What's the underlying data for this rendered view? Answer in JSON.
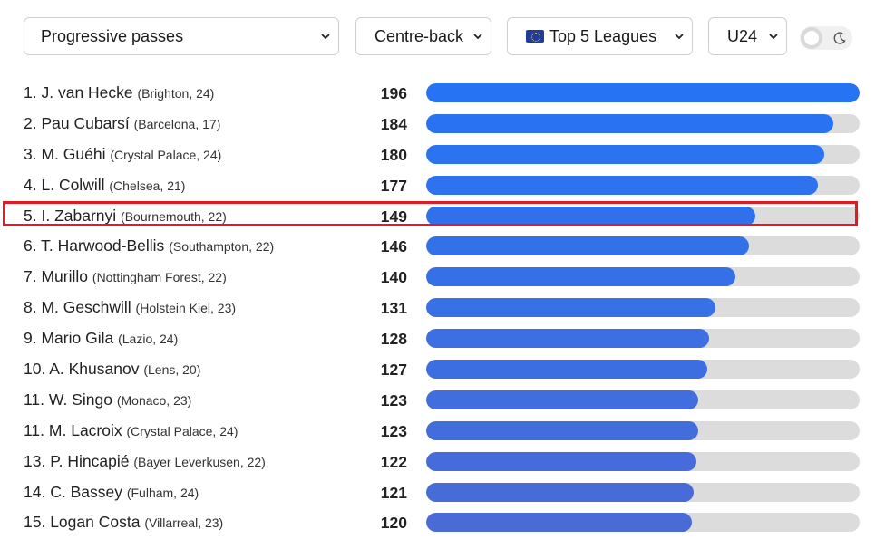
{
  "filters": {
    "stat": "Progressive passes",
    "position": "Centre-back",
    "league": "Top 5 Leagues",
    "league_icon": "eu-flag-icon",
    "age": "U24"
  },
  "theme_toggle": {
    "light_icon": "sun-circle-icon",
    "dark_icon": "moon-icon"
  },
  "colors": {
    "bar_start": "#2674f4",
    "bar_end": "#4a6bd6",
    "track": "#dcdcdc",
    "highlight": "#e01b24"
  },
  "highlighted_rank": "5.",
  "chart_data": {
    "type": "bar",
    "max": 196,
    "rows": [
      {
        "rank": "1.",
        "name": "J. van Hecke",
        "meta": "(Brighton, 24)",
        "value": 196
      },
      {
        "rank": "2.",
        "name": "Pau Cubarsí",
        "meta": "(Barcelona, 17)",
        "value": 184
      },
      {
        "rank": "3.",
        "name": "M. Guéhi",
        "meta": "(Crystal Palace, 24)",
        "value": 180
      },
      {
        "rank": "4.",
        "name": "L. Colwill",
        "meta": "(Chelsea, 21)",
        "value": 177
      },
      {
        "rank": "5.",
        "name": "I. Zabarnyi",
        "meta": "(Bournemouth, 22)",
        "value": 149
      },
      {
        "rank": "6.",
        "name": "T. Harwood-Bellis",
        "meta": "(Southampton, 22)",
        "value": 146
      },
      {
        "rank": "7.",
        "name": "Murillo",
        "meta": "(Nottingham Forest, 22)",
        "value": 140
      },
      {
        "rank": "8.",
        "name": "M. Geschwill",
        "meta": "(Holstein Kiel, 23)",
        "value": 131
      },
      {
        "rank": "9.",
        "name": "Mario Gila",
        "meta": "(Lazio, 24)",
        "value": 128
      },
      {
        "rank": "10.",
        "name": "A. Khusanov",
        "meta": "(Lens, 20)",
        "value": 127
      },
      {
        "rank": "11.",
        "name": "W. Singo",
        "meta": "(Monaco, 23)",
        "value": 123
      },
      {
        "rank": "11.",
        "name": "M. Lacroix",
        "meta": "(Crystal Palace, 24)",
        "value": 123
      },
      {
        "rank": "13.",
        "name": "P. Hincapié",
        "meta": "(Bayer Leverkusen, 22)",
        "value": 122
      },
      {
        "rank": "14.",
        "name": "C. Bassey",
        "meta": "(Fulham, 24)",
        "value": 121
      },
      {
        "rank": "15.",
        "name": "Logan Costa",
        "meta": "(Villarreal, 23)",
        "value": 120
      }
    ]
  }
}
